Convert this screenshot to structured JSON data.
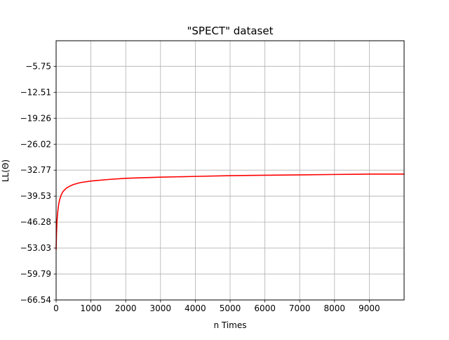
{
  "chart_data": {
    "type": "line",
    "title": "\"SPECT\" dataset",
    "xlabel": "n Times",
    "ylabel": "LL(Θ)",
    "xlim": [
      0,
      10000
    ],
    "ylim": [
      -66.54,
      0.89
    ],
    "x_ticks": [
      0,
      1000,
      2000,
      3000,
      4000,
      5000,
      6000,
      7000,
      8000,
      9000
    ],
    "x_tick_labels": [
      "0",
      "1000",
      "2000",
      "3000",
      "4000",
      "5000",
      "6000",
      "7000",
      "8000",
      "9000"
    ],
    "y_ticks": [
      -66.54,
      -59.79,
      -53.03,
      -46.28,
      -39.53,
      -32.77,
      -26.02,
      -19.26,
      -12.51,
      -5.75
    ],
    "y_tick_labels": [
      "−66.54",
      "−59.79",
      "−53.03",
      "−46.28",
      "−39.53",
      "−32.77",
      "−26.02",
      "−19.26",
      "−12.51",
      "−5.75"
    ],
    "grid": true,
    "series": [
      {
        "color": "#ff0000",
        "x": [
          0,
          10,
          25,
          50,
          75,
          100,
          150,
          200,
          300,
          400,
          500,
          700,
          1000,
          1500,
          2000,
          3000,
          4000,
          5000,
          6000,
          7000,
          8000,
          9000,
          10000
        ],
        "values": [
          -53.4,
          -49.5,
          -46.0,
          -43.3,
          -41.6,
          -40.5,
          -39.1,
          -38.3,
          -37.4,
          -36.9,
          -36.5,
          -36.0,
          -35.6,
          -35.2,
          -34.9,
          -34.6,
          -34.4,
          -34.2,
          -34.1,
          -34.0,
          -33.9,
          -33.8,
          -33.8
        ]
      }
    ]
  }
}
